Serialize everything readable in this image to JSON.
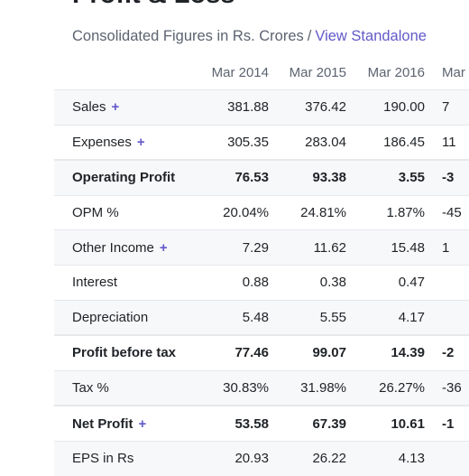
{
  "header": {
    "title": "Profit & Loss",
    "subtitle": "Consolidated Figures in Rs. Crores",
    "separator": "/",
    "view_link": "View Standalone"
  },
  "table": {
    "columns": [
      "Mar 2014",
      "Mar 2015",
      "Mar 2016",
      "Mar"
    ],
    "rows": [
      {
        "label": "Sales",
        "plus": "+",
        "values": [
          "381.88",
          "376.42",
          "190.00",
          "7"
        ]
      },
      {
        "label": "Expenses",
        "plus": "+",
        "values": [
          "305.35",
          "283.04",
          "186.45",
          "11"
        ]
      },
      {
        "label": "Operating Profit",
        "plus": "",
        "values": [
          "76.53",
          "93.38",
          "3.55",
          "-3"
        ]
      },
      {
        "label": "OPM %",
        "plus": "",
        "values": [
          "20.04%",
          "24.81%",
          "1.87%",
          "-45"
        ]
      },
      {
        "label": "Other Income",
        "plus": "+",
        "values": [
          "7.29",
          "11.62",
          "15.48",
          "1"
        ]
      },
      {
        "label": "Interest",
        "plus": "",
        "values": [
          "0.88",
          "0.38",
          "0.47",
          ""
        ]
      },
      {
        "label": "Depreciation",
        "plus": "",
        "values": [
          "5.48",
          "5.55",
          "4.17",
          ""
        ]
      },
      {
        "label": "Profit before tax",
        "plus": "",
        "values": [
          "77.46",
          "99.07",
          "14.39",
          "-2"
        ]
      },
      {
        "label": "Tax %",
        "plus": "",
        "values": [
          "30.83%",
          "31.98%",
          "26.27%",
          "-36"
        ]
      },
      {
        "label": "Net Profit",
        "plus": "+",
        "values": [
          "53.58",
          "67.39",
          "10.61",
          "-1"
        ]
      },
      {
        "label": "EPS in Rs",
        "plus": "",
        "values": [
          "20.93",
          "26.22",
          "4.13",
          ""
        ]
      }
    ]
  }
}
